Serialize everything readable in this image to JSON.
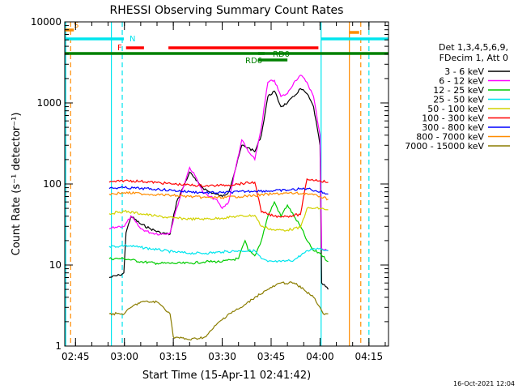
{
  "chart_data": {
    "type": "line",
    "title": "RHESSI Observing Summary Count Rates",
    "xlabel": "Start Time (15-Apr-11 02:41:42)",
    "ylabel": "Count Rate (s⁻¹ detector⁻¹)",
    "yscale": "log",
    "ylim": [
      1,
      10000
    ],
    "xlim": [
      "02:41:42",
      "04:21:00"
    ],
    "x_ticks": [
      "02:45",
      "03:00",
      "03:15",
      "03:30",
      "03:45",
      "04:00",
      "04:15"
    ],
    "y_ticks": [
      "1",
      "10",
      "100",
      "1000",
      "10000"
    ],
    "legend_header": [
      "Det 1,3,4,5,6,9,",
      "FDecim 1, Att 0"
    ],
    "legend_position": "right",
    "timestamp": "16-Oct-2021 12:04",
    "series": [
      {
        "name": "3 - 6 keV",
        "color": "#000000",
        "points": [
          [
            "02:55:20",
            7
          ],
          [
            "02:58:30",
            7.5
          ],
          [
            "02:59:50",
            8
          ],
          [
            "03:00:30",
            25
          ],
          [
            "03:02:00",
            40
          ],
          [
            "03:05:00",
            32
          ],
          [
            "03:08:00",
            28
          ],
          [
            "03:11:00",
            25
          ],
          [
            "03:14:00",
            24
          ],
          [
            "03:16:00",
            60
          ],
          [
            "03:18:00",
            90
          ],
          [
            "03:20:00",
            140
          ],
          [
            "03:22:00",
            110
          ],
          [
            "03:24:00",
            90
          ],
          [
            "03:26:00",
            80
          ],
          [
            "03:28:00",
            75
          ],
          [
            "03:30:00",
            70
          ],
          [
            "03:32:00",
            80
          ],
          [
            "03:34:00",
            150
          ],
          [
            "03:36:00",
            300
          ],
          [
            "03:38:00",
            280
          ],
          [
            "03:40:00",
            250
          ],
          [
            "03:42:00",
            400
          ],
          [
            "03:44:00",
            1200
          ],
          [
            "03:46:00",
            1400
          ],
          [
            "03:48:00",
            900
          ],
          [
            "03:50:00",
            1000
          ],
          [
            "03:52:00",
            1200
          ],
          [
            "03:54:00",
            1500
          ],
          [
            "03:56:00",
            1300
          ],
          [
            "03:58:00",
            900
          ],
          [
            "04:00:00",
            300
          ],
          [
            "04:00:30",
            6
          ],
          [
            "04:02:30",
            5
          ]
        ]
      },
      {
        "name": "6 - 12 keV",
        "color": "#ff00ff",
        "points": [
          [
            "02:55:20",
            28
          ],
          [
            "02:58:30",
            30
          ],
          [
            "03:00:00",
            30
          ],
          [
            "03:02:00",
            40
          ],
          [
            "03:05:00",
            28
          ],
          [
            "03:08:00",
            25
          ],
          [
            "03:11:00",
            24
          ],
          [
            "03:14:00",
            25
          ],
          [
            "03:16:00",
            50
          ],
          [
            "03:18:00",
            90
          ],
          [
            "03:20:00",
            160
          ],
          [
            "03:22:00",
            120
          ],
          [
            "03:24:00",
            80
          ],
          [
            "03:26:00",
            70
          ],
          [
            "03:28:00",
            65
          ],
          [
            "03:30:00",
            50
          ],
          [
            "03:32:00",
            60
          ],
          [
            "03:34:00",
            150
          ],
          [
            "03:36:00",
            350
          ],
          [
            "03:38:00",
            250
          ],
          [
            "03:40:00",
            200
          ],
          [
            "03:42:00",
            500
          ],
          [
            "03:44:00",
            1800
          ],
          [
            "03:46:00",
            1900
          ],
          [
            "03:48:00",
            1200
          ],
          [
            "03:50:00",
            1300
          ],
          [
            "03:52:00",
            1800
          ],
          [
            "03:54:00",
            2200
          ],
          [
            "03:56:00",
            1800
          ],
          [
            "03:58:00",
            1200
          ],
          [
            "04:00:00",
            400
          ],
          [
            "04:00:30",
            16
          ],
          [
            "04:02:30",
            15
          ]
        ]
      },
      {
        "name": "12 - 25 keV",
        "color": "#00cc00",
        "points": [
          [
            "02:55:20",
            12
          ],
          [
            "02:58:30",
            12
          ],
          [
            "03:00:00",
            12
          ],
          [
            "03:05:00",
            11
          ],
          [
            "03:10:00",
            10.5
          ],
          [
            "03:15:00",
            10.5
          ],
          [
            "03:20:00",
            10.5
          ],
          [
            "03:25:00",
            11
          ],
          [
            "03:30:00",
            11
          ],
          [
            "03:35:00",
            12
          ],
          [
            "03:37:00",
            20
          ],
          [
            "03:38:00",
            15
          ],
          [
            "03:40:00",
            13
          ],
          [
            "03:42:00",
            20
          ],
          [
            "03:44:00",
            40
          ],
          [
            "03:46:00",
            60
          ],
          [
            "03:48:00",
            40
          ],
          [
            "03:50:00",
            55
          ],
          [
            "03:52:00",
            40
          ],
          [
            "03:54:00",
            30
          ],
          [
            "03:56:00",
            20
          ],
          [
            "03:58:00",
            15
          ],
          [
            "04:00:00",
            14
          ],
          [
            "04:02:30",
            11
          ]
        ]
      },
      {
        "name": "25 - 50 keV",
        "color": "#00e5ee",
        "points": [
          [
            "02:55:20",
            17
          ],
          [
            "02:58:30",
            17
          ],
          [
            "03:00:00",
            17.5
          ],
          [
            "03:05:00",
            16.5
          ],
          [
            "03:10:00",
            15.5
          ],
          [
            "03:15:00",
            14.5
          ],
          [
            "03:20:00",
            14
          ],
          [
            "03:25:00",
            14
          ],
          [
            "03:30:00",
            14.5
          ],
          [
            "03:35:00",
            15
          ],
          [
            "03:40:00",
            15
          ],
          [
            "03:42:00",
            12
          ],
          [
            "03:44:00",
            11
          ],
          [
            "03:48:00",
            11
          ],
          [
            "03:52:00",
            11.5
          ],
          [
            "03:55:00",
            14
          ],
          [
            "03:58:00",
            16
          ],
          [
            "04:00:00",
            16
          ],
          [
            "04:02:30",
            15
          ]
        ]
      },
      {
        "name": "50 - 100 keV",
        "color": "#d2d200",
        "points": [
          [
            "02:55:20",
            43
          ],
          [
            "02:58:30",
            45
          ],
          [
            "03:00:00",
            46
          ],
          [
            "03:05:00",
            43
          ],
          [
            "03:10:00",
            40
          ],
          [
            "03:15:00",
            38
          ],
          [
            "03:20:00",
            37
          ],
          [
            "03:25:00",
            37
          ],
          [
            "03:30:00",
            38
          ],
          [
            "03:35:00",
            40
          ],
          [
            "03:40:00",
            41
          ],
          [
            "03:42:00",
            30
          ],
          [
            "03:46:00",
            27
          ],
          [
            "03:50:00",
            27
          ],
          [
            "03:54:00",
            29
          ],
          [
            "03:56:00",
            50
          ],
          [
            "04:00:00",
            50
          ],
          [
            "04:02:30",
            48
          ]
        ]
      },
      {
        "name": "100 - 300 keV",
        "color": "#ff0000",
        "points": [
          [
            "02:55:20",
            105
          ],
          [
            "02:58:30",
            108
          ],
          [
            "03:00:00",
            110
          ],
          [
            "03:05:00",
            108
          ],
          [
            "03:10:00",
            104
          ],
          [
            "03:15:00",
            100
          ],
          [
            "03:20:00",
            97
          ],
          [
            "03:25:00",
            95
          ],
          [
            "03:30:00",
            96
          ],
          [
            "03:35:00",
            100
          ],
          [
            "03:40:00",
            105
          ],
          [
            "03:42:00",
            45
          ],
          [
            "03:46:00",
            40
          ],
          [
            "03:50:00",
            40
          ],
          [
            "03:54:00",
            42
          ],
          [
            "03:56:00",
            115
          ],
          [
            "04:00:00",
            110
          ],
          [
            "04:02:30",
            105
          ]
        ]
      },
      {
        "name": "300 - 800 keV",
        "color": "#0000ff",
        "points": [
          [
            "02:55:20",
            88
          ],
          [
            "02:58:30",
            90
          ],
          [
            "03:00:00",
            90
          ],
          [
            "03:05:00",
            88
          ],
          [
            "03:10:00",
            86
          ],
          [
            "03:15:00",
            83
          ],
          [
            "03:20:00",
            80
          ],
          [
            "03:25:00",
            78
          ],
          [
            "03:30:00",
            78
          ],
          [
            "03:35:00",
            80
          ],
          [
            "03:40:00",
            82
          ],
          [
            "03:45:00",
            82
          ],
          [
            "03:50:00",
            84
          ],
          [
            "03:56:00",
            88
          ],
          [
            "04:00:00",
            80
          ],
          [
            "04:02:30",
            75
          ]
        ]
      },
      {
        "name": "800 - 7000 keV",
        "color": "#ff8c00",
        "points": [
          [
            "02:55:20",
            75
          ],
          [
            "02:58:30",
            77
          ],
          [
            "03:00:00",
            78
          ],
          [
            "03:05:00",
            76
          ],
          [
            "03:10:00",
            74
          ],
          [
            "03:15:00",
            72
          ],
          [
            "03:20:00",
            70
          ],
          [
            "03:25:00",
            68
          ],
          [
            "03:30:00",
            68
          ],
          [
            "03:35:00",
            70
          ],
          [
            "03:40:00",
            72
          ],
          [
            "03:45:00",
            75
          ],
          [
            "03:50:00",
            77
          ],
          [
            "03:56:00",
            76
          ],
          [
            "04:00:00",
            70
          ],
          [
            "04:02:30",
            65
          ]
        ]
      },
      {
        "name": "7000 - 15000 keV",
        "color": "#8b7d00",
        "points": [
          [
            "02:55:20",
            2.5
          ],
          [
            "02:58:30",
            2.5
          ],
          [
            "03:00:00",
            2.5
          ],
          [
            "03:02:00",
            3
          ],
          [
            "03:05:00",
            3.5
          ],
          [
            "03:10:00",
            3.5
          ],
          [
            "03:12:00",
            3
          ],
          [
            "03:14:00",
            2.5
          ],
          [
            "03:15:00",
            1.3
          ],
          [
            "03:20:00",
            1.2
          ],
          [
            "03:25:00",
            1.3
          ],
          [
            "03:28:00",
            1.8
          ],
          [
            "03:32:00",
            2.5
          ],
          [
            "03:36:00",
            3
          ],
          [
            "03:40:00",
            4
          ],
          [
            "03:44:00",
            5
          ],
          [
            "03:48:00",
            6
          ],
          [
            "03:52:00",
            6
          ],
          [
            "03:55:00",
            5
          ],
          [
            "03:58:00",
            4
          ],
          [
            "04:00:00",
            3
          ],
          [
            "04:01:00",
            2.5
          ],
          [
            "04:02:30",
            2.5
          ]
        ]
      }
    ],
    "flag_bars": [
      {
        "label": "S",
        "color": "#ff8c00",
        "segments": [
          [
            "02:41:42",
            "02:44:30"
          ]
        ]
      },
      {
        "label": "N",
        "color": "#00e5ee",
        "segments": [
          [
            "02:41:42",
            "02:59:50"
          ],
          [
            "04:00:20",
            "04:21:00"
          ]
        ]
      },
      {
        "label": "F",
        "color": "#ff0000",
        "segments": [
          [
            "03:00:30",
            "03:06:00"
          ],
          [
            "03:13:30",
            "03:59:30"
          ]
        ]
      },
      {
        "label": "",
        "color": "#ff8c00",
        "segments": [
          [
            "04:09:00",
            "04:12:00"
          ]
        ]
      },
      {
        "label": "",
        "color": "#008000",
        "segments": [
          [
            "02:41:42",
            "04:21:00"
          ]
        ]
      },
      {
        "label": "RD0",
        "color": "#008000",
        "segments": [
          [
            "03:41:00",
            "03:43:00"
          ]
        ]
      },
      {
        "label": "RD6",
        "color": "#008000",
        "segments": [
          [
            "03:41:00",
            "03:50:00"
          ]
        ]
      }
    ],
    "vertical_lines": [
      {
        "time": "02:43:30",
        "color": "#ff8c00",
        "style": "dashed"
      },
      {
        "time": "02:42:00",
        "color": "#00e5ee",
        "style": "solid"
      },
      {
        "time": "02:56:00",
        "color": "#00e5ee",
        "style": "solid"
      },
      {
        "time": "02:59:20",
        "color": "#00e5ee",
        "style": "dashed"
      },
      {
        "time": "04:00:20",
        "color": "#00e5ee",
        "style": "solid"
      },
      {
        "time": "04:09:00",
        "color": "#ff8c00",
        "style": "solid"
      },
      {
        "time": "04:12:30",
        "color": "#ff8c00",
        "style": "dashed"
      },
      {
        "time": "04:15:00",
        "color": "#00e5ee",
        "style": "dashed"
      }
    ]
  }
}
